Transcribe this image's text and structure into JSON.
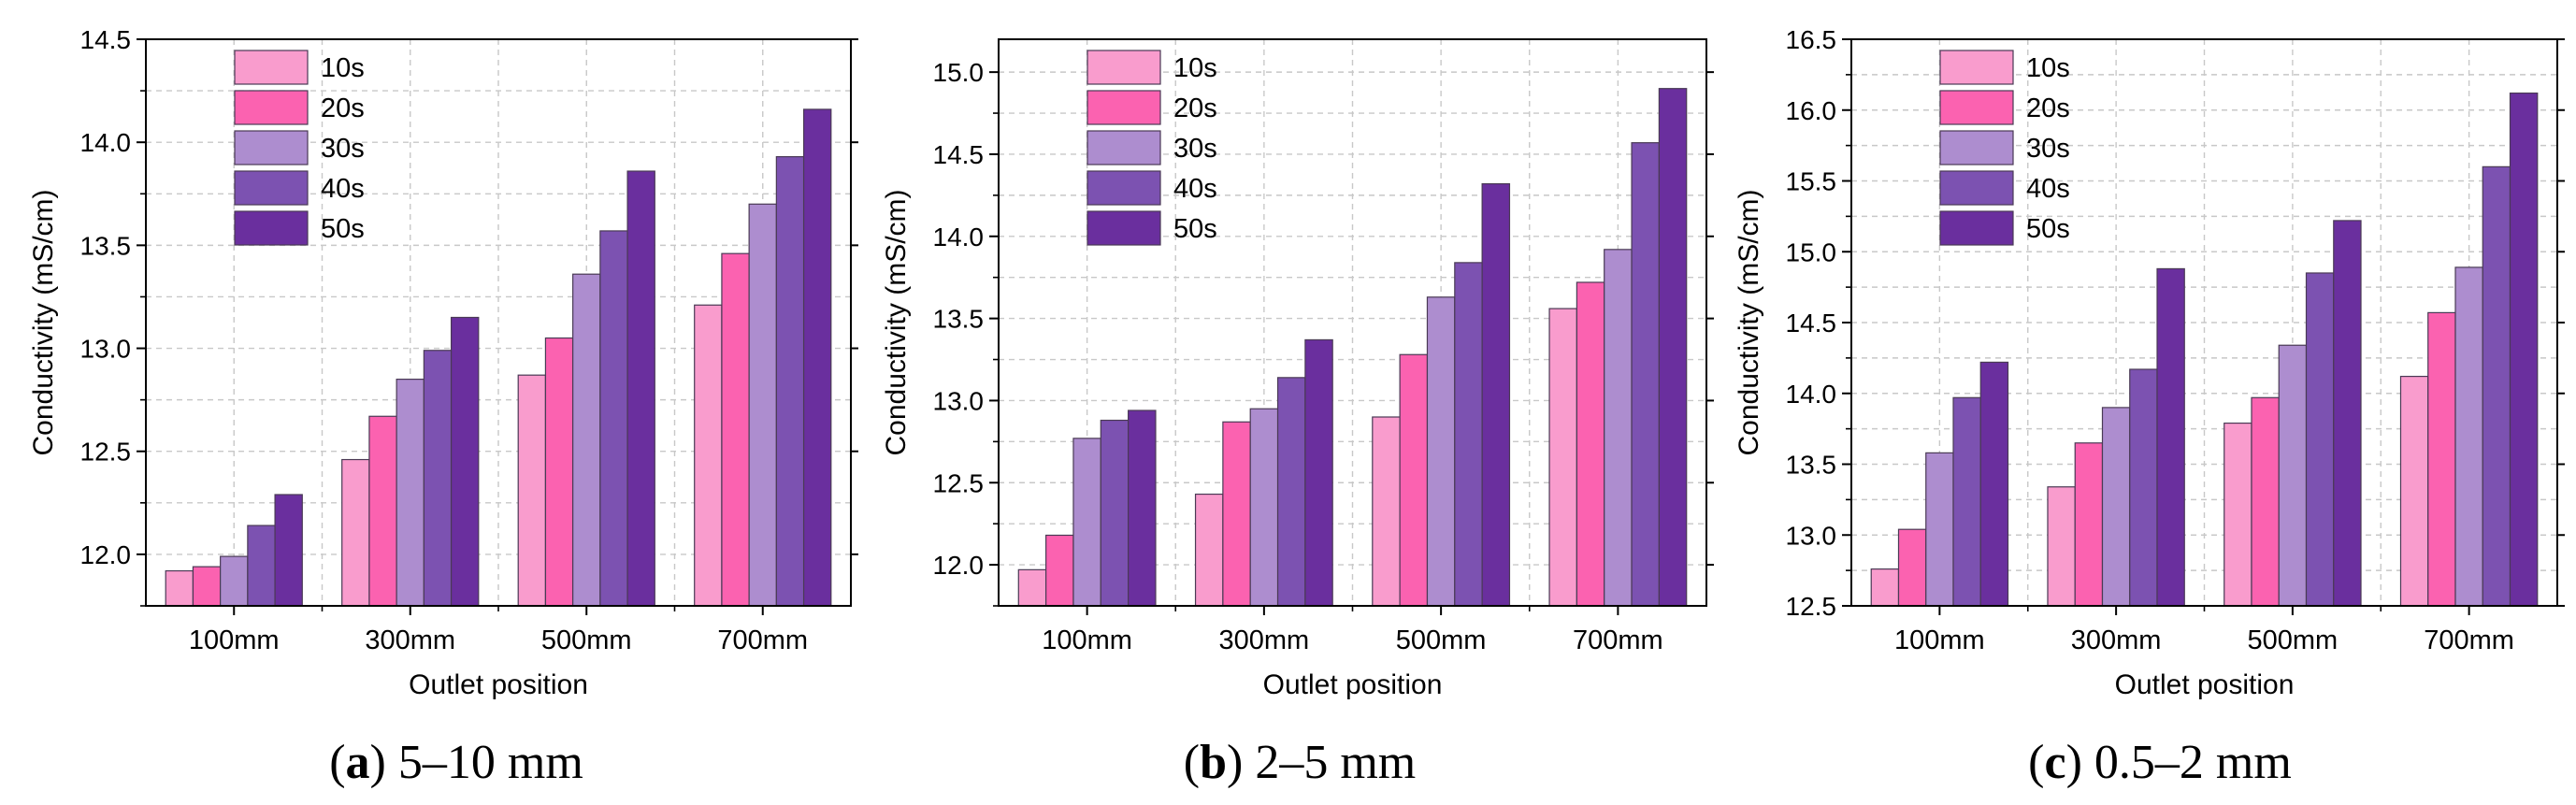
{
  "figure": {
    "colors": {
      "s10": "#f99ccd",
      "s20": "#fb62b0",
      "s30": "#ad8dcf",
      "s40": "#7c52b1",
      "s50": "#6a2f9e",
      "grid": "#c8c8c8",
      "bar_stroke": "#4a3a55",
      "axis": "#000000"
    }
  },
  "chart_data": [
    {
      "type": "bar",
      "title": "",
      "caption_letter": "a",
      "caption_text": " 5–10 mm",
      "xlabel": "Outlet position",
      "ylabel": "Conductivity (mS/cm)",
      "categories": [
        "100mm",
        "300mm",
        "500mm",
        "700mm"
      ],
      "ylim": [
        11.75,
        14.5
      ],
      "yticks": [
        12.0,
        12.5,
        13.0,
        13.5,
        14.0,
        14.5
      ],
      "ytick_labels": [
        "12.0",
        "12.5",
        "13.0",
        "13.5",
        "14.0",
        "14.5"
      ],
      "grid": true,
      "legend_position": "top-left",
      "series": [
        {
          "name": "10s",
          "values": [
            11.92,
            12.46,
            12.87,
            13.21
          ]
        },
        {
          "name": "20s",
          "values": [
            11.94,
            12.67,
            13.05,
            13.46
          ]
        },
        {
          "name": "30s",
          "values": [
            11.99,
            12.85,
            13.36,
            13.7
          ]
        },
        {
          "name": "40s",
          "values": [
            12.14,
            12.99,
            13.57,
            13.93
          ]
        },
        {
          "name": "50s",
          "values": [
            12.29,
            13.15,
            13.86,
            14.16
          ]
        }
      ]
    },
    {
      "type": "bar",
      "title": "",
      "caption_letter": "b",
      "caption_text": " 2–5 mm",
      "xlabel": "Outlet position",
      "ylabel": "Conductivity (mS/cm)",
      "categories": [
        "100mm",
        "300mm",
        "500mm",
        "700mm"
      ],
      "ylim": [
        11.75,
        15.2
      ],
      "yticks": [
        12.0,
        12.5,
        13.0,
        13.5,
        14.0,
        14.5,
        15.0
      ],
      "ytick_labels": [
        "12.0",
        "12.5",
        "13.0",
        "13.5",
        "14.0",
        "14.5",
        "15.0"
      ],
      "grid": true,
      "legend_position": "top-left",
      "series": [
        {
          "name": "10s",
          "values": [
            11.97,
            12.43,
            12.9,
            13.56
          ]
        },
        {
          "name": "20s",
          "values": [
            12.18,
            12.87,
            13.28,
            13.72
          ]
        },
        {
          "name": "30s",
          "values": [
            12.77,
            12.95,
            13.63,
            13.92
          ]
        },
        {
          "name": "40s",
          "values": [
            12.88,
            13.14,
            13.84,
            14.57
          ]
        },
        {
          "name": "50s",
          "values": [
            12.94,
            13.37,
            14.32,
            14.9
          ]
        }
      ]
    },
    {
      "type": "bar",
      "title": "",
      "caption_letter": "c",
      "caption_text": " 0.5–2 mm",
      "xlabel": "Outlet position",
      "ylabel": "Conductivity (mS/cm)",
      "categories": [
        "100mm",
        "300mm",
        "500mm",
        "700mm"
      ],
      "ylim": [
        12.5,
        16.5
      ],
      "yticks": [
        12.5,
        13.0,
        13.5,
        14.0,
        14.5,
        15.0,
        15.5,
        16.0,
        16.5
      ],
      "ytick_labels": [
        "12.5",
        "13.0",
        "13.5",
        "14.0",
        "14.5",
        "15.0",
        "15.5",
        "16.0",
        "16.5"
      ],
      "grid": true,
      "legend_position": "top-left",
      "series": [
        {
          "name": "10s",
          "values": [
            12.76,
            13.34,
            13.79,
            14.12
          ]
        },
        {
          "name": "20s",
          "values": [
            13.04,
            13.65,
            13.97,
            14.57
          ]
        },
        {
          "name": "30s",
          "values": [
            13.58,
            13.9,
            14.34,
            14.89
          ]
        },
        {
          "name": "40s",
          "values": [
            13.97,
            14.17,
            14.85,
            15.6
          ]
        },
        {
          "name": "50s",
          "values": [
            14.22,
            14.88,
            15.22,
            16.12
          ]
        }
      ]
    }
  ]
}
